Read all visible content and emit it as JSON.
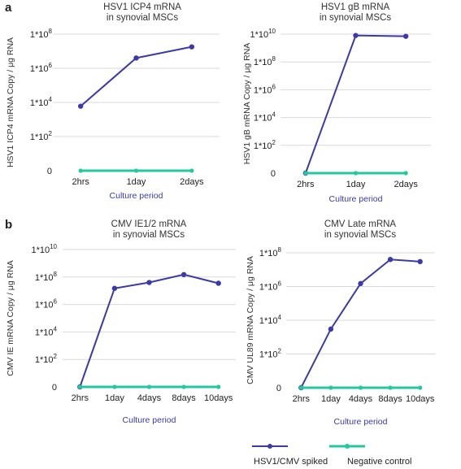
{
  "panel_labels": [
    "a",
    "b"
  ],
  "legend": {
    "items": [
      {
        "label": "HSV1/CMV spiked",
        "color": "#3a3aa8"
      },
      {
        "label": "Negative control",
        "color": "#22c9a0"
      }
    ]
  },
  "colors": {
    "spiked": "#3a3aa8",
    "control": "#22c9a0",
    "grid": "#d9d9d9"
  },
  "chart_data": [
    {
      "type": "line",
      "title": "HSV1 ICP4 mRNA\nin synovial MSCs",
      "xlabel": "Culture period",
      "ylabel": "HSV1 ICP4 mRNA Copy / μg RNA",
      "categories": [
        "2hrs",
        "1day",
        "2days"
      ],
      "yscale": "log",
      "y_ticks": [
        "0",
        "1*10^2",
        "1*10^4",
        "1*10^6",
        "1*10^8"
      ],
      "ylim": [
        "0",
        "1*10^8"
      ],
      "grid": true,
      "series": [
        {
          "name": "HSV1/CMV spiked",
          "values": [
            6000,
            4000000,
            18000000
          ]
        },
        {
          "name": "Negative control",
          "values": [
            0,
            0,
            0
          ]
        }
      ]
    },
    {
      "type": "line",
      "title": "HSV1 gB mRNA\nin synovial MSCs",
      "xlabel": "Culture period",
      "ylabel": "HSV1 gB mRNA Copy / μg RNA",
      "categories": [
        "2hrs",
        "1day",
        "2days"
      ],
      "yscale": "log",
      "y_ticks": [
        "0",
        "1*10^2",
        "1*10^4",
        "1*10^6",
        "1*10^8",
        "1*10^10"
      ],
      "ylim": [
        "0",
        "1*10^10"
      ],
      "grid": true,
      "series": [
        {
          "name": "HSV1/CMV spiked",
          "values": [
            0,
            8000000000,
            7000000000
          ]
        },
        {
          "name": "Negative control",
          "values": [
            0,
            0,
            0
          ]
        }
      ]
    },
    {
      "type": "line",
      "title": "CMV IE1/2 mRNA\nin synovial MSCs",
      "xlabel": "Culture period",
      "ylabel": "CMV IE mRNA Copy / μg RNA",
      "categories": [
        "2hrs",
        "1day",
        "4days",
        "8days",
        "10days"
      ],
      "yscale": "log",
      "y_ticks": [
        "0",
        "1*10^2",
        "1*10^4",
        "1*10^6",
        "1*10^8",
        "1*10^10"
      ],
      "ylim": [
        "0",
        "1*10^10"
      ],
      "grid": true,
      "series": [
        {
          "name": "HSV1/CMV spiked",
          "values": [
            0,
            15000000,
            40000000,
            150000000,
            35000000
          ]
        },
        {
          "name": "Negative control",
          "values": [
            0,
            0,
            0,
            0,
            0
          ]
        }
      ]
    },
    {
      "type": "line",
      "title": "CMV Late mRNA\nin synovial MSCs",
      "xlabel": "Culture period",
      "ylabel": "CMV UL89 mRNA Copy / μg RNA",
      "categories": [
        "2hrs",
        "1day",
        "4days",
        "8days",
        "10days"
      ],
      "yscale": "log",
      "y_ticks": [
        "0",
        "1*10^2",
        "1*10^4",
        "1*10^6",
        "1*10^8"
      ],
      "ylim": [
        "0",
        "1*10^8"
      ],
      "grid": true,
      "series": [
        {
          "name": "HSV1/CMV spiked",
          "values": [
            0,
            3000,
            1500000,
            40000000,
            30000000
          ]
        },
        {
          "name": "Negative control",
          "values": [
            0,
            0,
            0,
            0,
            0
          ]
        }
      ]
    }
  ]
}
